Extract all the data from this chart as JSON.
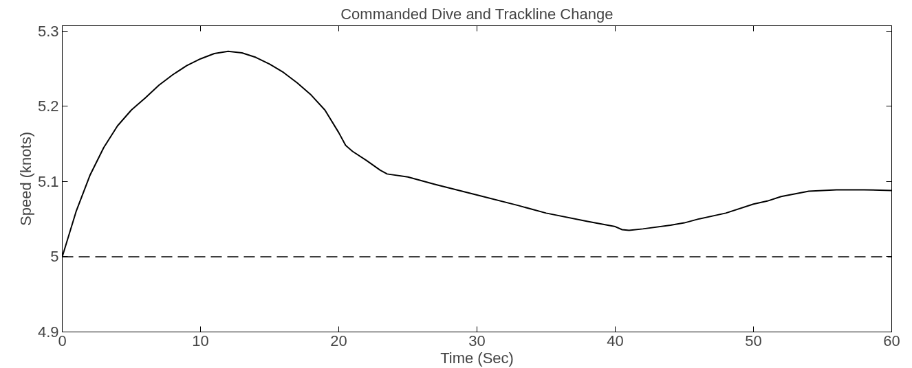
{
  "chart_data": {
    "type": "line",
    "title": "Commanded Dive and Trackline Change",
    "xlabel": "Time (Sec)",
    "ylabel": "Speed (knots)",
    "xlim": [
      0,
      60
    ],
    "ylim": [
      4.9,
      5.307
    ],
    "xticks": [
      0,
      10,
      20,
      30,
      40,
      50,
      60
    ],
    "yticks": [
      4.9,
      5,
      5.1,
      5.2,
      5.3
    ],
    "grid": false,
    "series": [
      {
        "color": "#000000",
        "line_style": "solid",
        "x": [
          0,
          1,
          2,
          3,
          4,
          5,
          6,
          7,
          8,
          9,
          10,
          11,
          12,
          13,
          14,
          15,
          16,
          17,
          18,
          19,
          20,
          20.5,
          21,
          22,
          23,
          23.5,
          25,
          27,
          30,
          33,
          35,
          38,
          40,
          40.5,
          41,
          42,
          44,
          45,
          46,
          48,
          50,
          51,
          52,
          54,
          56,
          58,
          60
        ],
        "values": [
          5.0,
          5.06,
          5.108,
          5.145,
          5.174,
          5.195,
          5.211,
          5.228,
          5.242,
          5.254,
          5.263,
          5.27,
          5.273,
          5.271,
          5.265,
          5.256,
          5.245,
          5.231,
          5.215,
          5.195,
          5.165,
          5.148,
          5.14,
          5.128,
          5.115,
          5.11,
          5.106,
          5.096,
          5.082,
          5.068,
          5.058,
          5.047,
          5.04,
          5.036,
          5.035,
          5.037,
          5.042,
          5.045,
          5.05,
          5.058,
          5.07,
          5.074,
          5.08,
          5.087,
          5.089,
          5.089,
          5.088
        ]
      }
    ],
    "ref_lines": [
      {
        "axis": "y",
        "value": 5,
        "color": "#000000",
        "line_style": "dashed"
      }
    ]
  }
}
